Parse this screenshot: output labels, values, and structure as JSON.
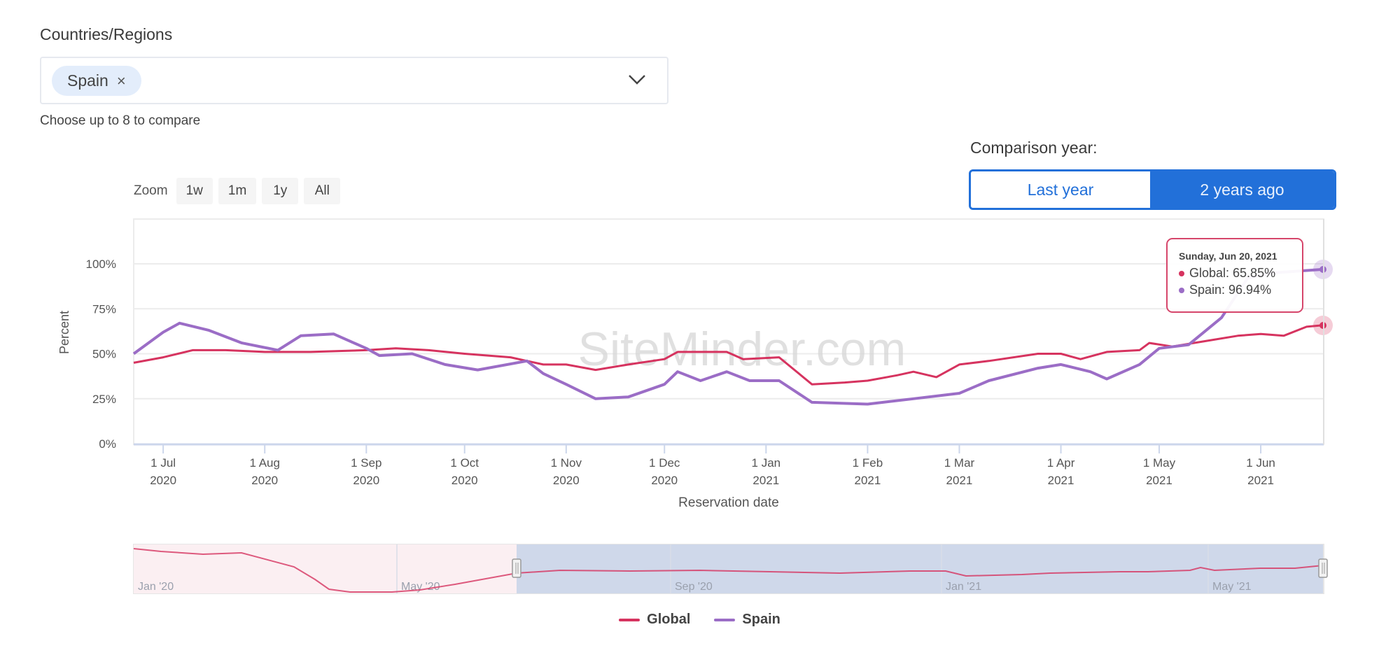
{
  "filters": {
    "countries_label": "Countries/Regions",
    "selected_chip": "Spain",
    "chip_remove_icon": "×",
    "hint": "Choose up to 8 to compare"
  },
  "comparison": {
    "label": "Comparison year:",
    "options": [
      "Last year",
      "2 years ago"
    ],
    "selected": "2 years ago"
  },
  "zoom": {
    "label": "Zoom",
    "buttons": [
      "1w",
      "1m",
      "1y",
      "All"
    ]
  },
  "watermark": "SiteMinder.com",
  "tooltip": {
    "date": "Sunday, Jun 20, 2021",
    "global": "Global: 65.85%",
    "spain": "Spain: 96.94%"
  },
  "legend": {
    "global": "Global",
    "spain": "Spain"
  },
  "colors": {
    "global": "#d6335f",
    "spain": "#9b6dc6",
    "accent": "#2270d9",
    "navigator_selection": "#cfd8ea"
  },
  "navigator": {
    "labels": [
      "Jan '20",
      "May '20",
      "Sep '20",
      "Jan '21",
      "May '21"
    ]
  },
  "chart_data": {
    "type": "line",
    "title": "",
    "xlabel": "Reservation date",
    "ylabel": "Percent",
    "ylim": [
      0,
      100
    ],
    "yticks": [
      "0%",
      "25%",
      "50%",
      "75%",
      "100%"
    ],
    "xticks": [
      {
        "month": "1 Jul",
        "year": "2020"
      },
      {
        "month": "1 Aug",
        "year": "2020"
      },
      {
        "month": "1 Sep",
        "year": "2020"
      },
      {
        "month": "1 Oct",
        "year": "2020"
      },
      {
        "month": "1 Nov",
        "year": "2020"
      },
      {
        "month": "1 Dec",
        "year": "2020"
      },
      {
        "month": "1 Jan",
        "year": "2021"
      },
      {
        "month": "1 Feb",
        "year": "2021"
      },
      {
        "month": "1 Mar",
        "year": "2021"
      },
      {
        "month": "1 Apr",
        "year": "2021"
      },
      {
        "month": "1 May",
        "year": "2021"
      },
      {
        "month": "1 Jun",
        "year": "2021"
      }
    ],
    "grid": true,
    "legend_position": "bottom",
    "x_range": [
      "2020-06-22",
      "2021-06-20"
    ],
    "series": [
      {
        "name": "Global",
        "color": "#d6335f",
        "points": [
          [
            "2020-06-22",
            45
          ],
          [
            "2020-07-01",
            48
          ],
          [
            "2020-07-10",
            52
          ],
          [
            "2020-07-20",
            52
          ],
          [
            "2020-08-01",
            51
          ],
          [
            "2020-08-15",
            51
          ],
          [
            "2020-09-01",
            52
          ],
          [
            "2020-09-10",
            53
          ],
          [
            "2020-09-20",
            52
          ],
          [
            "2020-10-01",
            50
          ],
          [
            "2020-10-15",
            48
          ],
          [
            "2020-10-25",
            44
          ],
          [
            "2020-11-01",
            44
          ],
          [
            "2020-11-10",
            41
          ],
          [
            "2020-11-20",
            44
          ],
          [
            "2020-12-01",
            47
          ],
          [
            "2020-12-05",
            51
          ],
          [
            "2020-12-20",
            51
          ],
          [
            "2020-12-25",
            47
          ],
          [
            "2021-01-05",
            48
          ],
          [
            "2021-01-15",
            33
          ],
          [
            "2021-01-25",
            34
          ],
          [
            "2021-02-01",
            35
          ],
          [
            "2021-02-10",
            38
          ],
          [
            "2021-02-15",
            40
          ],
          [
            "2021-02-22",
            37
          ],
          [
            "2021-03-01",
            44
          ],
          [
            "2021-03-10",
            46
          ],
          [
            "2021-03-25",
            50
          ],
          [
            "2021-04-01",
            50
          ],
          [
            "2021-04-07",
            47
          ],
          [
            "2021-04-15",
            51
          ],
          [
            "2021-04-25",
            52
          ],
          [
            "2021-04-28",
            56
          ],
          [
            "2021-05-05",
            54
          ],
          [
            "2021-05-15",
            57
          ],
          [
            "2021-05-25",
            60
          ],
          [
            "2021-06-01",
            61
          ],
          [
            "2021-06-08",
            60
          ],
          [
            "2021-06-15",
            65
          ],
          [
            "2021-06-20",
            65.85
          ]
        ]
      },
      {
        "name": "Spain",
        "color": "#9b6dc6",
        "points": [
          [
            "2020-06-22",
            50
          ],
          [
            "2020-07-01",
            62
          ],
          [
            "2020-07-06",
            67
          ],
          [
            "2020-07-15",
            63
          ],
          [
            "2020-07-25",
            56
          ],
          [
            "2020-08-05",
            52
          ],
          [
            "2020-08-12",
            60
          ],
          [
            "2020-08-22",
            61
          ],
          [
            "2020-09-01",
            53
          ],
          [
            "2020-09-05",
            49
          ],
          [
            "2020-09-15",
            50
          ],
          [
            "2020-09-25",
            44
          ],
          [
            "2020-10-05",
            41
          ],
          [
            "2020-10-20",
            46
          ],
          [
            "2020-10-25",
            39
          ],
          [
            "2020-11-01",
            33
          ],
          [
            "2020-11-10",
            25
          ],
          [
            "2020-11-20",
            26
          ],
          [
            "2020-12-01",
            33
          ],
          [
            "2020-12-05",
            40
          ],
          [
            "2020-12-12",
            35
          ],
          [
            "2020-12-20",
            40
          ],
          [
            "2020-12-27",
            35
          ],
          [
            "2021-01-05",
            35
          ],
          [
            "2021-01-15",
            23
          ],
          [
            "2021-02-01",
            22
          ],
          [
            "2021-02-15",
            25
          ],
          [
            "2021-03-01",
            28
          ],
          [
            "2021-03-10",
            35
          ],
          [
            "2021-03-25",
            42
          ],
          [
            "2021-04-01",
            44
          ],
          [
            "2021-04-10",
            40
          ],
          [
            "2021-04-15",
            36
          ],
          [
            "2021-04-25",
            44
          ],
          [
            "2021-05-01",
            53
          ],
          [
            "2021-05-10",
            55
          ],
          [
            "2021-05-20",
            70
          ],
          [
            "2021-05-28",
            92
          ],
          [
            "2021-06-05",
            95
          ],
          [
            "2021-06-20",
            96.94
          ]
        ]
      }
    ],
    "annotations": [
      {
        "type": "tooltip",
        "date": "Sunday, Jun 20, 2021",
        "Global": 65.85,
        "Spain": 96.94
      }
    ]
  }
}
